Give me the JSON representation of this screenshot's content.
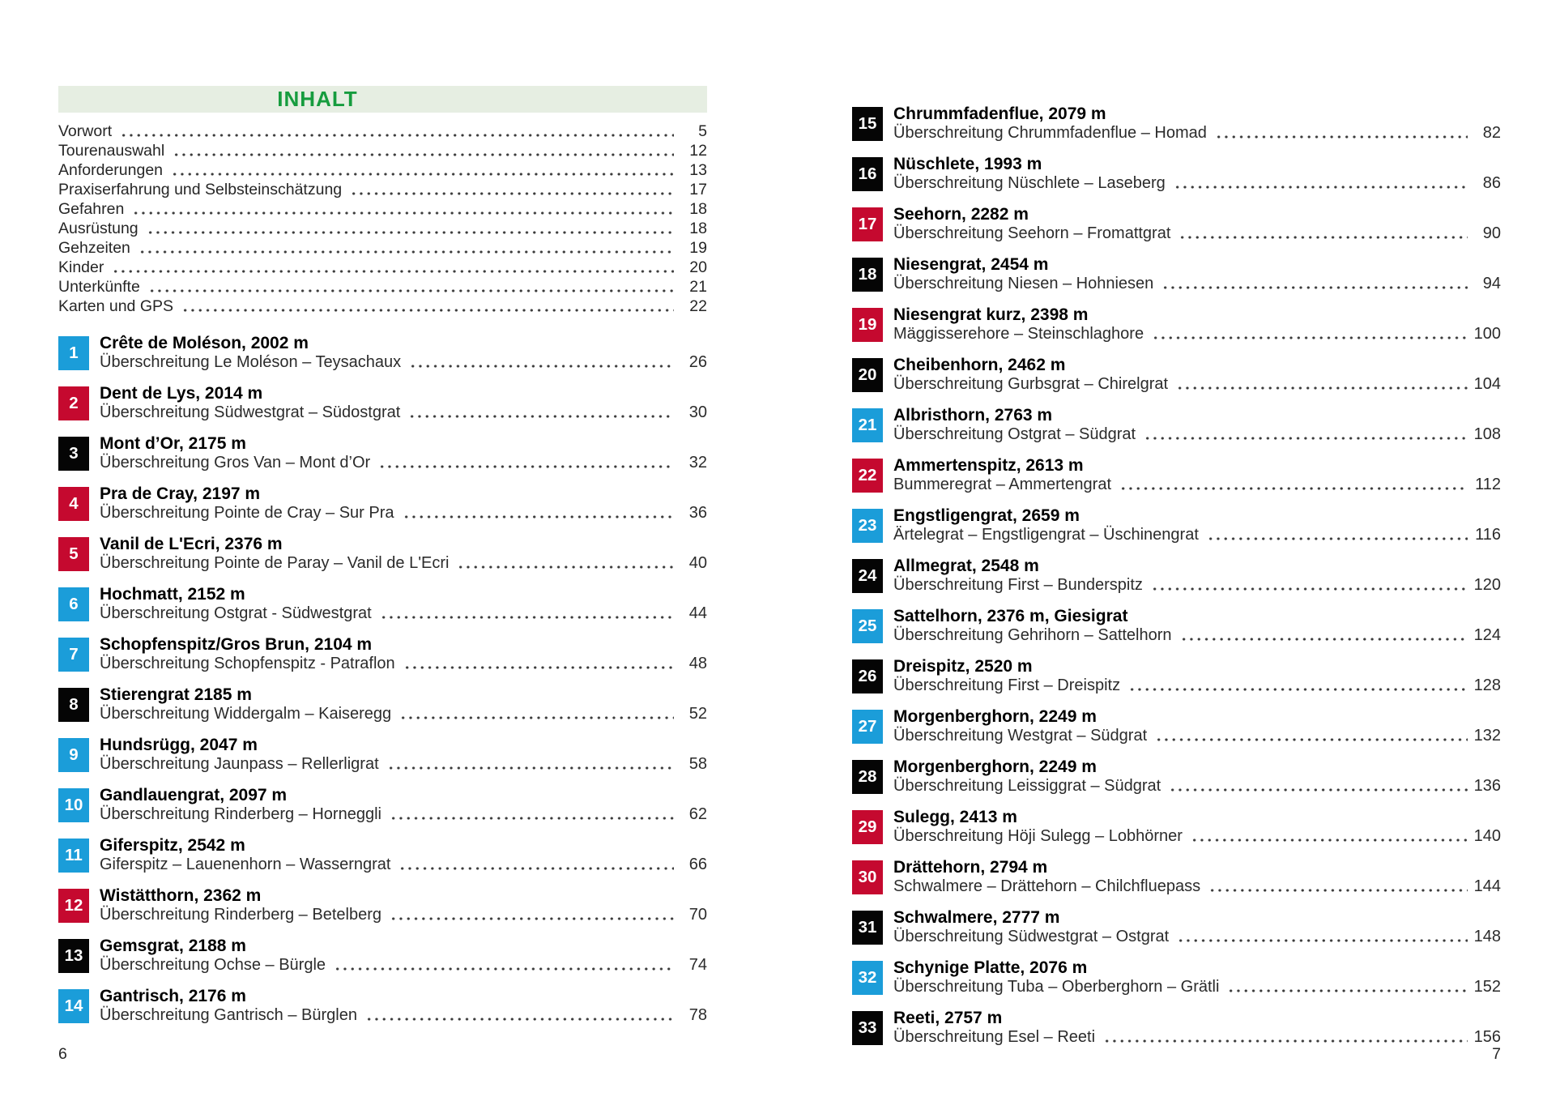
{
  "header": {
    "title": "INHALT"
  },
  "colors": {
    "band_bg": "#e6eee2",
    "band_text": "#169c3e",
    "blue": "#1b9dd9",
    "red": "#c5092f",
    "black": "#050505"
  },
  "intro_items": [
    {
      "label": "Vorwort",
      "page": "5"
    },
    {
      "label": "Tourenauswahl",
      "page": "12"
    },
    {
      "label": "Anforderungen",
      "page": "13"
    },
    {
      "label": "Praxiserfahrung und Selbsteinschätzung",
      "page": "17"
    },
    {
      "label": "Gefahren",
      "page": "18"
    },
    {
      "label": "Ausrüstung",
      "page": "18"
    },
    {
      "label": "Gehzeiten",
      "page": "19"
    },
    {
      "label": "Kinder",
      "page": "20"
    },
    {
      "label": "Unterkünfte",
      "page": "21"
    },
    {
      "label": "Karten und GPS",
      "page": "22"
    }
  ],
  "pages": {
    "left": {
      "folio": "6",
      "entries": [
        {
          "num": "1",
          "color": "blue",
          "title": "Crête de Moléson, 2002 m",
          "route": "Überschreitung Le Moléson – Teysachaux",
          "page": "26"
        },
        {
          "num": "2",
          "color": "red",
          "title": "Dent de Lys, 2014 m",
          "route": "Überschreitung Südwestgrat – Südostgrat",
          "page": "30"
        },
        {
          "num": "3",
          "color": "black",
          "title": "Mont d’Or, 2175 m",
          "route": "Überschreitung Gros Van – Mont d’Or",
          "page": "32"
        },
        {
          "num": "4",
          "color": "red",
          "title": "Pra de Cray, 2197 m",
          "route": "Überschreitung Pointe de Cray – Sur Pra",
          "page": "36"
        },
        {
          "num": "5",
          "color": "red",
          "title": "Vanil de L'Ecri, 2376 m",
          "route": "Überschreitung Pointe de Paray – Vanil de L'Ecri",
          "page": "40"
        },
        {
          "num": "6",
          "color": "blue",
          "title": "Hochmatt, 2152 m",
          "route": "Überschreitung Ostgrat - Südwestgrat",
          "page": "44"
        },
        {
          "num": "7",
          "color": "blue",
          "title": "Schopfenspitz/Gros Brun, 2104 m",
          "route": "Überschreitung Schopfenspitz - Patraflon",
          "page": "48"
        },
        {
          "num": "8",
          "color": "black",
          "title": "Stierengrat 2185 m",
          "route": "Überschreitung Widdergalm – Kaiseregg",
          "page": "52"
        },
        {
          "num": "9",
          "color": "blue",
          "title": "Hundsrügg, 2047 m",
          "route": "Überschreitung Jaunpass – Rellerligrat",
          "page": "58"
        },
        {
          "num": "10",
          "color": "blue",
          "title": "Gandlauengrat, 2097 m",
          "route": "Überschreitung Rinderberg – Horneggli",
          "page": "62"
        },
        {
          "num": "11",
          "color": "blue",
          "title": "Giferspitz, 2542 m",
          "route": "Giferspitz – Lauenenhorn – Wasserngrat",
          "page": "66"
        },
        {
          "num": "12",
          "color": "red",
          "title": "Wistätthorn, 2362 m",
          "route": "Überschreitung Rinderberg – Betelberg",
          "page": "70"
        },
        {
          "num": "13",
          "color": "black",
          "title": "Gemsgrat, 2188 m",
          "route": "Überschreitung Ochse – Bürgle",
          "page": "74"
        },
        {
          "num": "14",
          "color": "blue",
          "title": "Gantrisch, 2176 m",
          "route": "Überschreitung Gantrisch – Bürglen",
          "page": "78"
        }
      ]
    },
    "right": {
      "folio": "7",
      "entries": [
        {
          "num": "15",
          "color": "black",
          "title": "Chrummfadenflue, 2079 m",
          "route": "Überschreitung Chrummfadenflue – Homad",
          "page": "82"
        },
        {
          "num": "16",
          "color": "black",
          "title": "Nüschlete, 1993 m",
          "route": "Überschreitung Nüschlete – Laseberg",
          "page": "86"
        },
        {
          "num": "17",
          "color": "red",
          "title": "Seehorn, 2282 m",
          "route": "Überschreitung Seehorn – Fromattgrat",
          "page": "90"
        },
        {
          "num": "18",
          "color": "black",
          "title": "Niesengrat, 2454 m",
          "route": "Überschreitung Niesen – Hohniesen",
          "page": "94"
        },
        {
          "num": "19",
          "color": "red",
          "title": "Niesengrat kurz, 2398 m",
          "route": "Mäggisserehore – Steinschlaghore",
          "page": "100"
        },
        {
          "num": "20",
          "color": "black",
          "title": "Cheibenhorn, 2462 m",
          "route": "Überschreitung Gurbsgrat – Chirelgrat",
          "page": "104"
        },
        {
          "num": "21",
          "color": "blue",
          "title": "Albristhorn, 2763 m",
          "route": "Überschreitung Ostgrat – Südgrat",
          "page": "108"
        },
        {
          "num": "22",
          "color": "red",
          "title": "Ammertenspitz, 2613 m",
          "route": "Bummeregrat – Ammertengrat",
          "page": "112"
        },
        {
          "num": "23",
          "color": "blue",
          "title": "Engstligengrat, 2659 m",
          "route": "Ärtelegrat – Engstligengrat – Üschinengrat",
          "page": "116"
        },
        {
          "num": "24",
          "color": "black",
          "title": "Allmegrat, 2548 m",
          "route": "Überschreitung First – Bunderspitz",
          "page": "120"
        },
        {
          "num": "25",
          "color": "blue",
          "title": "Sattelhorn, 2376 m, Giesigrat",
          "route": "Überschreitung Gehrihorn – Sattelhorn",
          "page": "124"
        },
        {
          "num": "26",
          "color": "black",
          "title": "Dreispitz, 2520 m",
          "route": "Überschreitung First – Dreispitz",
          "page": "128"
        },
        {
          "num": "27",
          "color": "blue",
          "title": "Morgenberghorn, 2249 m",
          "route": "Überschreitung Westgrat – Südgrat",
          "page": "132"
        },
        {
          "num": "28",
          "color": "black",
          "title": "Morgenberghorn, 2249 m",
          "route": "Überschreitung Leissiggrat – Südgrat",
          "page": "136"
        },
        {
          "num": "29",
          "color": "red",
          "title": "Sulegg, 2413 m",
          "route": "Überschreitung Höji Sulegg – Lobhörner",
          "page": "140"
        },
        {
          "num": "30",
          "color": "red",
          "title": "Drättehorn, 2794 m",
          "route": "Schwalmere – Drättehorn – Chilchfluepass",
          "page": "144"
        },
        {
          "num": "31",
          "color": "black",
          "title": "Schwalmere, 2777 m",
          "route": "Überschreitung Südwestgrat – Ostgrat",
          "page": "148"
        },
        {
          "num": "32",
          "color": "blue",
          "title": "Schynige Platte, 2076 m",
          "route": "Überschreitung Tuba – Oberberghorn – Grätli",
          "page": "152"
        },
        {
          "num": "33",
          "color": "black",
          "title": "Reeti, 2757 m",
          "route": "Überschreitung Esel – Reeti",
          "page": "156"
        }
      ]
    }
  }
}
